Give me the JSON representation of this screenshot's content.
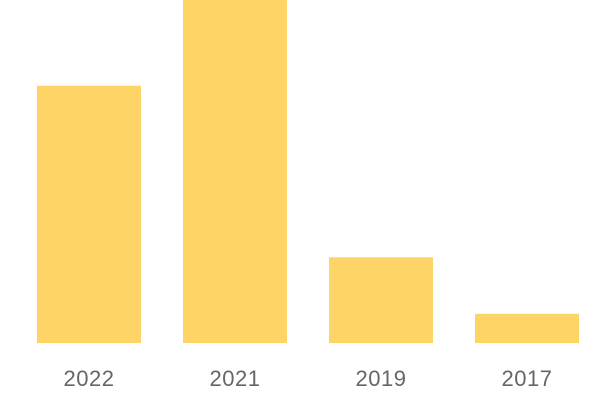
{
  "chart_data": {
    "type": "bar",
    "categories": [
      "2022",
      "2021",
      "2019",
      "2017"
    ],
    "values": [
      75,
      100,
      25,
      8.5
    ],
    "color": "#fed466",
    "ylim": [
      0,
      100
    ]
  }
}
